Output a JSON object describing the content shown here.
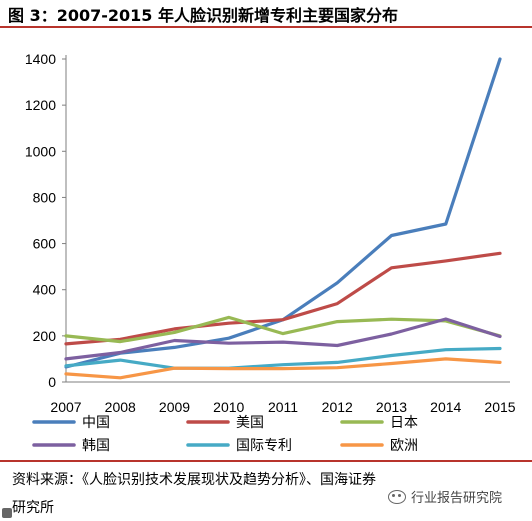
{
  "header": {
    "title": "图 3：2007-2015 年人脸识别新增专利主要国家分布"
  },
  "footer": {
    "source_line1": "资料来源：《人脸识别技术发展现状及趋势分析》、国海证券",
    "source_line2": "研究所",
    "watermark": "行业报告研究院"
  },
  "chart_data": {
    "type": "line",
    "title": "",
    "xlabel": "",
    "ylabel": "",
    "x": [
      "2007",
      "2008",
      "2009",
      "2010",
      "2011",
      "2012",
      "2013",
      "2014",
      "2015"
    ],
    "ylim": [
      0,
      1400
    ],
    "yticks": [
      "0",
      "200",
      "400",
      "600",
      "800",
      "1000",
      "1200",
      "1400"
    ],
    "grid": false,
    "legend_position": "bottom",
    "series": [
      {
        "name": "中国",
        "color": "#4a7ebb",
        "values": [
          65,
          125,
          150,
          190,
          270,
          430,
          635,
          685,
          1400
        ]
      },
      {
        "name": "美国",
        "color": "#be4b48",
        "values": [
          165,
          185,
          230,
          255,
          270,
          340,
          495,
          525,
          558
        ]
      },
      {
        "name": "日本",
        "color": "#98b954",
        "values": [
          200,
          175,
          215,
          280,
          210,
          262,
          272,
          265,
          200
        ]
      },
      {
        "name": "韩国",
        "color": "#7d60a0",
        "values": [
          100,
          128,
          180,
          168,
          173,
          158,
          208,
          273,
          197
        ]
      },
      {
        "name": "国际专利",
        "color": "#46aac5",
        "values": [
          70,
          95,
          60,
          60,
          75,
          85,
          115,
          140,
          145
        ]
      },
      {
        "name": "欧洲",
        "color": "#f79646",
        "values": [
          35,
          18,
          60,
          58,
          58,
          62,
          80,
          100,
          85
        ]
      }
    ]
  }
}
